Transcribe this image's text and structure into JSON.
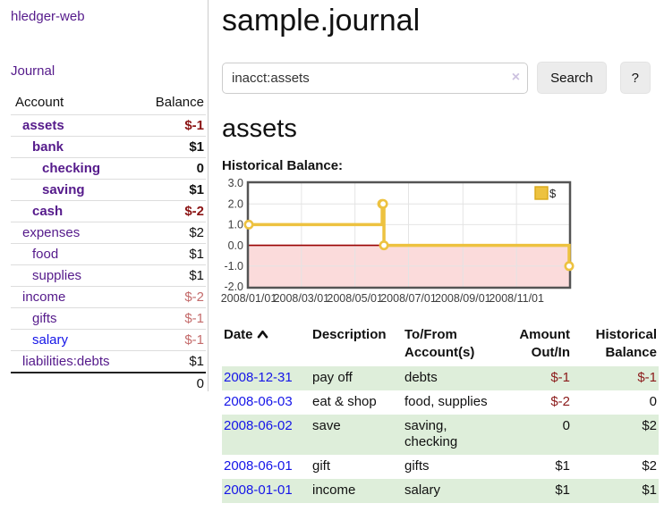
{
  "app": {
    "brand": "hledger-web",
    "nav_journal": "Journal"
  },
  "sidebar": {
    "accounts_table": {
      "col_account": "Account",
      "col_balance": "Balance",
      "rows": [
        {
          "account": "assets",
          "balance": "$-1",
          "indent": 1,
          "bold": true,
          "negative": "strong"
        },
        {
          "account": "bank",
          "balance": "$1",
          "indent": 2,
          "bold": true,
          "negative": null
        },
        {
          "account": "checking",
          "balance": "0",
          "indent": 3,
          "bold": true,
          "negative": null
        },
        {
          "account": "saving",
          "balance": "$1",
          "indent": 3,
          "bold": true,
          "negative": null
        },
        {
          "account": "cash",
          "balance": "$-2",
          "indent": 2,
          "bold": true,
          "negative": "strong"
        },
        {
          "account": "expenses",
          "balance": "$2",
          "indent": 1,
          "bold": false,
          "negative": null
        },
        {
          "account": "food",
          "balance": "$1",
          "indent": 2,
          "bold": false,
          "negative": null
        },
        {
          "account": "supplies",
          "balance": "$1",
          "indent": 2,
          "bold": false,
          "negative": null
        },
        {
          "account": "income",
          "balance": "$-2",
          "indent": 1,
          "bold": false,
          "negative": "soft"
        },
        {
          "account": "gifts",
          "balance": "$-1",
          "indent": 2,
          "bold": false,
          "negative": "soft"
        },
        {
          "account": "salary",
          "balance": "$-1",
          "indent": 2,
          "bold": false,
          "negative": "soft",
          "link": "blue"
        },
        {
          "account": "liabilities:debts",
          "balance": "$1",
          "indent": 1,
          "bold": false,
          "negative": null
        }
      ],
      "total": "0"
    }
  },
  "header": {
    "title": "sample.journal"
  },
  "search": {
    "value": "inacct:assets",
    "clear_icon": "×",
    "search_label": "Search",
    "help_label": "?"
  },
  "register": {
    "heading": "assets",
    "chart_title": "Historical Balance:",
    "headers": {
      "date": "Date",
      "description": "Description",
      "accounts": "To/From Account(s)",
      "amount": "Amount Out/In",
      "balance": "Historical Balance"
    },
    "rows": [
      {
        "date": "2008-12-31",
        "description": "pay off",
        "accounts": "debts",
        "amount": "$-1",
        "amount_negative": true,
        "balance": "$-1",
        "balance_negative": true
      },
      {
        "date": "2008-06-03",
        "description": "eat & shop",
        "accounts": "food, supplies",
        "amount": "$-2",
        "amount_negative": true,
        "balance": "0",
        "balance_negative": false
      },
      {
        "date": "2008-06-02",
        "description": "save",
        "accounts": "saving,\nchecking",
        "amount": "0",
        "amount_negative": false,
        "balance": "$2",
        "balance_negative": false
      },
      {
        "date": "2008-06-01",
        "description": "gift",
        "accounts": "gifts",
        "amount": "$1",
        "amount_negative": false,
        "balance": "$2",
        "balance_negative": false
      },
      {
        "date": "2008-01-01",
        "description": "income",
        "accounts": "salary",
        "amount": "$1",
        "amount_negative": false,
        "balance": "$1",
        "balance_negative": false
      }
    ]
  },
  "colors": {
    "link_purple": "#551a8b",
    "link_blue": "#1515e8",
    "negative_strong": "#8b1414",
    "negative_soft": "#c46b6b",
    "row_green": "#deeeda",
    "chart_line": "#edc240",
    "chart_grid": "#e4e4e4",
    "chart_border": "#545454",
    "chart_zero": "#990000",
    "chart_negative_fill": "#fbdbdb",
    "chart_legend_border": "#d9a918"
  },
  "chart_data": {
    "type": "line",
    "style": "step",
    "title": "Historical Balance",
    "legend": [
      {
        "label": "$",
        "color": "#edc240"
      }
    ],
    "legend_position": "top-right",
    "grid": true,
    "xrange": [
      "2008-01-01",
      "2008-12-31"
    ],
    "ylim": [
      -2,
      3
    ],
    "yticks": [
      {
        "v": 3,
        "label": "3.0"
      },
      {
        "v": 2,
        "label": "2.0"
      },
      {
        "v": 1,
        "label": "1.0"
      },
      {
        "v": 0,
        "label": "0.0"
      },
      {
        "v": -1,
        "label": "-1.0"
      },
      {
        "v": -2,
        "label": "-2.0"
      }
    ],
    "xticks": [
      {
        "date": "2008-01-01",
        "label": "2008/01/01"
      },
      {
        "date": "2008-03-01",
        "label": "2008/03/01"
      },
      {
        "date": "2008-05-01",
        "label": "2008/05/01"
      },
      {
        "date": "2008-07-01",
        "label": "2008/07/01"
      },
      {
        "date": "2008-09-01",
        "label": "2008/09/01"
      },
      {
        "date": "2008-11-01",
        "label": "2008/11/01"
      }
    ],
    "points": [
      {
        "date": "2008-01-01",
        "value": 1
      },
      {
        "date": "2008-06-01",
        "value": 2
      },
      {
        "date": "2008-06-02",
        "value": 2
      },
      {
        "date": "2008-06-03",
        "value": 0
      },
      {
        "date": "2008-12-31",
        "value": -1
      }
    ],
    "negative_region_shaded": true
  }
}
